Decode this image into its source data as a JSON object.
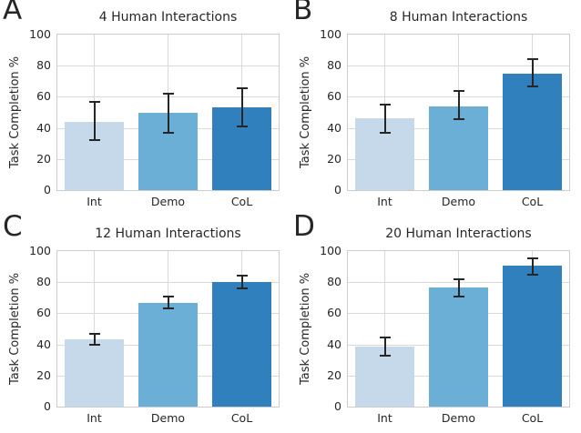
{
  "style": {
    "bar_colors": [
      "#c5d9ea",
      "#6baed6",
      "#2f80bd"
    ],
    "grid_color": "#d9d9d9",
    "spine_color": "#cccccc",
    "errorbar_color": "#262626",
    "text_color": "#262626",
    "background": "#ffffff"
  },
  "panels": [
    {
      "letter": "A"
    },
    {
      "letter": "B"
    },
    {
      "letter": "C"
    },
    {
      "letter": "D"
    }
  ],
  "chart_data": [
    {
      "type": "bar",
      "title": "4 Human Interactions",
      "ylabel": "Task Completion %",
      "categories": [
        "Int",
        "Demo",
        "CoL"
      ],
      "values": [
        44,
        49.5,
        53.5
      ],
      "error_low": [
        32,
        37,
        41
      ],
      "error_high": [
        56.5,
        62,
        65.5
      ],
      "ylim": [
        0,
        100
      ],
      "yticks": [
        0,
        20,
        40,
        60,
        80,
        100
      ],
      "grid": true,
      "legend": false
    },
    {
      "type": "bar",
      "title": "8 Human Interactions",
      "ylabel": "Task Completion %",
      "categories": [
        "Int",
        "Demo",
        "CoL"
      ],
      "values": [
        46,
        54,
        75
      ],
      "error_low": [
        37,
        45.5,
        66.5
      ],
      "error_high": [
        55,
        63.5,
        84.5
      ],
      "ylim": [
        0,
        100
      ],
      "yticks": [
        0,
        20,
        40,
        60,
        80,
        100
      ],
      "grid": true,
      "legend": false
    },
    {
      "type": "bar",
      "title": "12 Human Interactions",
      "ylabel": "Task Completion %",
      "categories": [
        "Int",
        "Demo",
        "CoL"
      ],
      "values": [
        43,
        66.5,
        80
      ],
      "error_low": [
        39.5,
        63,
        76
      ],
      "error_high": [
        47,
        71,
        84
      ],
      "ylim": [
        0,
        100
      ],
      "yticks": [
        0,
        20,
        40,
        60,
        80,
        100
      ],
      "grid": true,
      "legend": false
    },
    {
      "type": "bar",
      "title": "20 Human Interactions",
      "ylabel": "Task Completion %",
      "categories": [
        "Int",
        "Demo",
        "CoL"
      ],
      "values": [
        38.5,
        76.5,
        90.5
      ],
      "error_low": [
        33,
        71,
        85
      ],
      "error_high": [
        44.5,
        82,
        95.5
      ],
      "ylim": [
        0,
        100
      ],
      "yticks": [
        0,
        20,
        40,
        60,
        80,
        100
      ],
      "grid": true,
      "legend": false
    }
  ]
}
